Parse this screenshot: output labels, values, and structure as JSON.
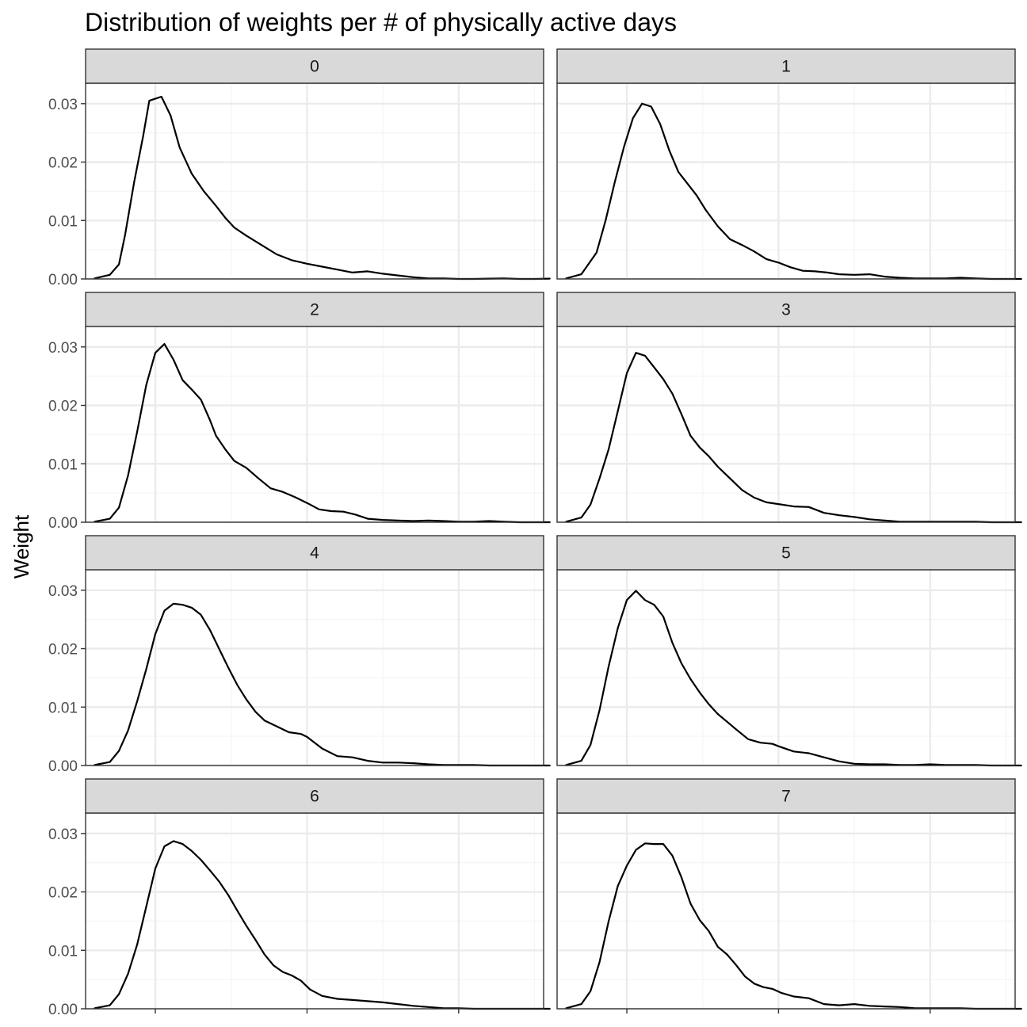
{
  "chart_data": {
    "type": "line",
    "subtype": "density-facets",
    "title": "Distribution of weights per # of physically active days",
    "xlabel": "",
    "ylabel": "Weight",
    "ylim": [
      0,
      0.0335
    ],
    "xlim": [
      -0.3,
      14.8
    ],
    "y_ticks": [
      0,
      0.01,
      0.02,
      0.03
    ],
    "y_tick_labels": [
      "0.00",
      "0.01",
      "0.02",
      "0.03"
    ],
    "x_major_ticks": [
      2,
      7,
      12
    ],
    "x_minor_ticks": [
      4.5,
      9.5,
      14.5
    ],
    "x_tick_labels_shown": false,
    "grid": true,
    "facet_layout": {
      "columns": 2,
      "rows": 4
    },
    "panels": [
      {
        "label": "0",
        "x": [
          0,
          0.5,
          0.8,
          1.0,
          1.3,
          1.6,
          1.8,
          2.2,
          2.5,
          2.8,
          3.2,
          3.6,
          4.0,
          4.3,
          4.6,
          5.0,
          5.5,
          6.0,
          6.5,
          7.0,
          7.5,
          8.0,
          8.5,
          9.0,
          9.5,
          10.0,
          10.5,
          11.0,
          11.5,
          12.0,
          12.5,
          13.0,
          13.5,
          14.0,
          14.5,
          15.0
        ],
        "y": [
          0.0001,
          0.0007,
          0.0025,
          0.0075,
          0.0165,
          0.0245,
          0.0305,
          0.0312,
          0.028,
          0.0225,
          0.018,
          0.015,
          0.0125,
          0.0105,
          0.0088,
          0.0074,
          0.0058,
          0.0042,
          0.0032,
          0.0026,
          0.0021,
          0.0016,
          0.0011,
          0.0013,
          0.0009,
          0.0006,
          0.0003,
          0.0001,
          0.0001,
          0,
          0,
          5e-05,
          0.0001,
          0,
          0,
          5e-05
        ]
      },
      {
        "label": "1",
        "x": [
          0,
          0.5,
          1.0,
          1.3,
          1.6,
          1.9,
          2.2,
          2.5,
          2.8,
          3.1,
          3.4,
          3.7,
          4.0,
          4.3,
          4.6,
          5.0,
          5.4,
          5.8,
          6.2,
          6.6,
          7.0,
          7.4,
          7.8,
          8.2,
          8.6,
          9.0,
          9.5,
          10.0,
          10.5,
          11.0,
          11.5,
          12.0,
          12.5,
          13.0,
          13.5,
          14.0,
          14.5,
          15.0
        ],
        "y": [
          0.0001,
          0.0008,
          0.0045,
          0.01,
          0.0165,
          0.0225,
          0.0275,
          0.03,
          0.0295,
          0.0265,
          0.022,
          0.0183,
          0.0163,
          0.0143,
          0.0118,
          0.009,
          0.0068,
          0.0058,
          0.0047,
          0.0034,
          0.0028,
          0.002,
          0.0014,
          0.0013,
          0.0011,
          0.0008,
          0.0007,
          0.0008,
          0.0004,
          0.0002,
          0.0001,
          0.0001,
          0.0001,
          0.0002,
          0.0001,
          0,
          0,
          0
        ]
      },
      {
        "label": "2",
        "x": [
          0,
          0.5,
          0.8,
          1.1,
          1.4,
          1.7,
          2.0,
          2.3,
          2.6,
          2.9,
          3.2,
          3.5,
          3.8,
          4.0,
          4.3,
          4.6,
          5.0,
          5.4,
          5.8,
          6.2,
          6.6,
          7.0,
          7.4,
          7.8,
          8.2,
          8.6,
          9.0,
          9.5,
          10.0,
          10.5,
          11.0,
          11.5,
          12.0,
          12.5,
          13.0,
          13.5,
          14.0,
          14.5,
          15.0
        ],
        "y": [
          0.0001,
          0.0006,
          0.0025,
          0.008,
          0.0155,
          0.0235,
          0.029,
          0.0305,
          0.0278,
          0.0243,
          0.0227,
          0.021,
          0.0175,
          0.0148,
          0.0125,
          0.0105,
          0.0093,
          0.0075,
          0.0058,
          0.0052,
          0.0043,
          0.0033,
          0.0022,
          0.0019,
          0.0018,
          0.0013,
          0.0006,
          0.0004,
          0.0003,
          0.0002,
          0.0003,
          0.0002,
          0.0001,
          0.0001,
          0.0002,
          0.0001,
          0,
          0,
          0
        ]
      },
      {
        "label": "3",
        "x": [
          0,
          0.5,
          0.8,
          1.1,
          1.4,
          1.7,
          2.0,
          2.3,
          2.6,
          2.9,
          3.2,
          3.5,
          3.8,
          4.1,
          4.4,
          4.7,
          5.0,
          5.4,
          5.8,
          6.2,
          6.6,
          7.0,
          7.5,
          8.0,
          8.5,
          9.0,
          9.5,
          10.0,
          10.5,
          11.0,
          11.5,
          12.0,
          12.5,
          13.0,
          13.5,
          14.0,
          14.5,
          15.0
        ],
        "y": [
          0.0001,
          0.0008,
          0.003,
          0.0075,
          0.0125,
          0.019,
          0.0255,
          0.029,
          0.0285,
          0.0265,
          0.0245,
          0.022,
          0.0185,
          0.0148,
          0.0128,
          0.0113,
          0.0095,
          0.0075,
          0.0055,
          0.0042,
          0.0034,
          0.0031,
          0.0027,
          0.0026,
          0.0016,
          0.0012,
          0.0009,
          0.0005,
          0.0003,
          0.0001,
          0.0001,
          0.0001,
          0.0001,
          0.0001,
          0.0001,
          0,
          0,
          0
        ]
      },
      {
        "label": "4",
        "x": [
          0,
          0.5,
          0.8,
          1.1,
          1.4,
          1.7,
          2.0,
          2.3,
          2.6,
          2.9,
          3.2,
          3.5,
          3.8,
          4.1,
          4.4,
          4.7,
          5.0,
          5.3,
          5.6,
          6.0,
          6.4,
          6.8,
          7.0,
          7.5,
          8.0,
          8.5,
          9.0,
          9.5,
          10.0,
          10.5,
          11.0,
          11.5,
          12.0,
          12.5,
          13.0,
          13.5,
          14.0,
          14.5,
          15.0
        ],
        "y": [
          0.0001,
          0.0006,
          0.0025,
          0.006,
          0.011,
          0.0165,
          0.0225,
          0.0265,
          0.0277,
          0.0275,
          0.027,
          0.0258,
          0.0232,
          0.02,
          0.0168,
          0.0138,
          0.0113,
          0.0092,
          0.0077,
          0.0067,
          0.0057,
          0.0054,
          0.0049,
          0.0029,
          0.0016,
          0.0014,
          0.0008,
          0.0005,
          0.0005,
          0.0004,
          0.0002,
          0.0001,
          0.0001,
          0.0001,
          0,
          0,
          0,
          0,
          0
        ]
      },
      {
        "label": "5",
        "x": [
          0,
          0.5,
          0.8,
          1.1,
          1.4,
          1.7,
          2.0,
          2.3,
          2.6,
          2.9,
          3.2,
          3.5,
          3.8,
          4.1,
          4.4,
          4.7,
          5.0,
          5.3,
          5.6,
          6.0,
          6.4,
          6.8,
          7.0,
          7.5,
          8.0,
          8.5,
          9.0,
          9.5,
          10.0,
          10.5,
          11.0,
          11.5,
          12.0,
          12.5,
          13.0,
          13.5,
          14.0,
          14.5,
          15.0
        ],
        "y": [
          0.0001,
          0.0008,
          0.0035,
          0.0095,
          0.017,
          0.0235,
          0.0283,
          0.0299,
          0.0283,
          0.0275,
          0.0255,
          0.021,
          0.0175,
          0.0148,
          0.0125,
          0.0105,
          0.0088,
          0.0075,
          0.0062,
          0.0045,
          0.0039,
          0.0037,
          0.0033,
          0.0024,
          0.0021,
          0.0014,
          0.0007,
          0.0003,
          0.0002,
          0.0002,
          0.0001,
          0.0001,
          0.0002,
          0.0001,
          0.0001,
          0.0001,
          0,
          0,
          0
        ]
      },
      {
        "label": "6",
        "x": [
          0,
          0.5,
          0.8,
          1.1,
          1.4,
          1.7,
          2.0,
          2.3,
          2.6,
          2.9,
          3.2,
          3.5,
          3.8,
          4.1,
          4.4,
          4.7,
          5.0,
          5.3,
          5.6,
          5.9,
          6.2,
          6.5,
          6.8,
          7.1,
          7.5,
          8.0,
          8.5,
          9.0,
          9.5,
          10.0,
          10.5,
          11.0,
          11.5,
          12.0,
          12.5,
          13.0,
          13.5,
          14.0,
          14.5,
          15.0
        ],
        "y": [
          0.0001,
          0.0006,
          0.0025,
          0.006,
          0.011,
          0.0175,
          0.024,
          0.0278,
          0.0287,
          0.0282,
          0.027,
          0.0255,
          0.0237,
          0.0218,
          0.0195,
          0.0168,
          0.0142,
          0.0118,
          0.0093,
          0.0074,
          0.0063,
          0.0057,
          0.0048,
          0.0033,
          0.0022,
          0.0017,
          0.0015,
          0.0013,
          0.0011,
          0.0008,
          0.0005,
          0.0003,
          0.0001,
          0.0001,
          0,
          0,
          0,
          0,
          0,
          0
        ]
      },
      {
        "label": "7",
        "x": [
          0,
          0.5,
          0.8,
          1.1,
          1.4,
          1.7,
          2.0,
          2.3,
          2.6,
          2.9,
          3.2,
          3.5,
          3.8,
          4.1,
          4.4,
          4.7,
          5.0,
          5.3,
          5.6,
          5.9,
          6.2,
          6.5,
          6.8,
          7.1,
          7.5,
          8.0,
          8.5,
          9.0,
          9.5,
          10.0,
          10.5,
          11.0,
          11.5,
          12.0,
          12.5,
          13.0,
          13.5,
          14.0,
          14.5,
          15.0
        ],
        "y": [
          0.0001,
          0.0008,
          0.003,
          0.008,
          0.015,
          0.021,
          0.0245,
          0.0272,
          0.0283,
          0.0282,
          0.0282,
          0.0262,
          0.0225,
          0.018,
          0.0152,
          0.0133,
          0.0106,
          0.0093,
          0.0075,
          0.0055,
          0.0043,
          0.0037,
          0.0034,
          0.0027,
          0.0021,
          0.0018,
          0.0008,
          0.0006,
          0.0008,
          0.0005,
          0.0004,
          0.0003,
          0.0001,
          0.0001,
          0.0001,
          0.0001,
          0,
          0,
          0,
          0
        ]
      }
    ]
  },
  "colors": {
    "background": "#ffffff",
    "strip_fill": "#d9d9d9",
    "strip_border": "#333333",
    "panel_border": "#333333",
    "grid_major": "#ebebeb",
    "grid_minor": "#f5f5f5",
    "line": "#000000",
    "tick_text": "#4d4d4d"
  }
}
